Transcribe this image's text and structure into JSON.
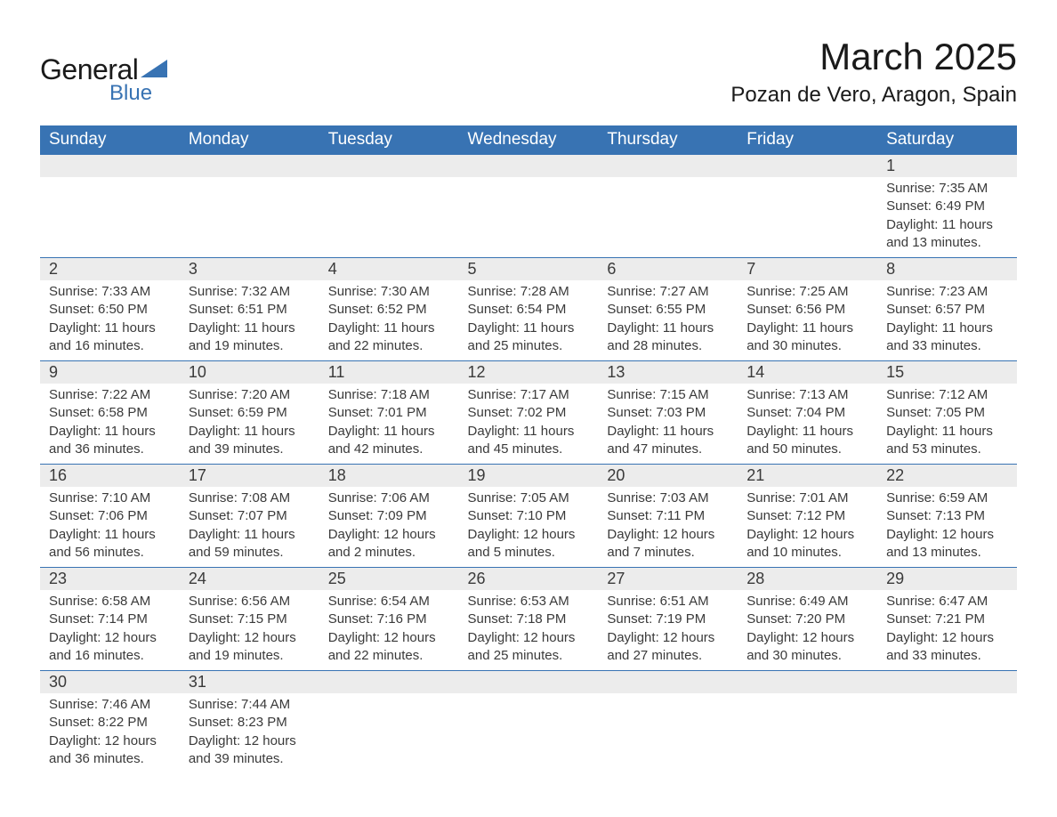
{
  "logo": {
    "general": "General",
    "blue": "Blue"
  },
  "title": "March 2025",
  "location": "Pozan de Vero, Aragon, Spain",
  "colors": {
    "header_bg": "#3873b3",
    "row_stripe": "#ececec",
    "text": "#3a3a3a",
    "border": "#3873b3"
  },
  "day_headers": [
    "Sunday",
    "Monday",
    "Tuesday",
    "Wednesday",
    "Thursday",
    "Friday",
    "Saturday"
  ],
  "weeks": [
    [
      null,
      null,
      null,
      null,
      null,
      null,
      {
        "num": "1",
        "sunrise": "7:35 AM",
        "sunset": "6:49 PM",
        "daylight": "11 hours and 13 minutes."
      }
    ],
    [
      {
        "num": "2",
        "sunrise": "7:33 AM",
        "sunset": "6:50 PM",
        "daylight": "11 hours and 16 minutes."
      },
      {
        "num": "3",
        "sunrise": "7:32 AM",
        "sunset": "6:51 PM",
        "daylight": "11 hours and 19 minutes."
      },
      {
        "num": "4",
        "sunrise": "7:30 AM",
        "sunset": "6:52 PM",
        "daylight": "11 hours and 22 minutes."
      },
      {
        "num": "5",
        "sunrise": "7:28 AM",
        "sunset": "6:54 PM",
        "daylight": "11 hours and 25 minutes."
      },
      {
        "num": "6",
        "sunrise": "7:27 AM",
        "sunset": "6:55 PM",
        "daylight": "11 hours and 28 minutes."
      },
      {
        "num": "7",
        "sunrise": "7:25 AM",
        "sunset": "6:56 PM",
        "daylight": "11 hours and 30 minutes."
      },
      {
        "num": "8",
        "sunrise": "7:23 AM",
        "sunset": "6:57 PM",
        "daylight": "11 hours and 33 minutes."
      }
    ],
    [
      {
        "num": "9",
        "sunrise": "7:22 AM",
        "sunset": "6:58 PM",
        "daylight": "11 hours and 36 minutes."
      },
      {
        "num": "10",
        "sunrise": "7:20 AM",
        "sunset": "6:59 PM",
        "daylight": "11 hours and 39 minutes."
      },
      {
        "num": "11",
        "sunrise": "7:18 AM",
        "sunset": "7:01 PM",
        "daylight": "11 hours and 42 minutes."
      },
      {
        "num": "12",
        "sunrise": "7:17 AM",
        "sunset": "7:02 PM",
        "daylight": "11 hours and 45 minutes."
      },
      {
        "num": "13",
        "sunrise": "7:15 AM",
        "sunset": "7:03 PM",
        "daylight": "11 hours and 47 minutes."
      },
      {
        "num": "14",
        "sunrise": "7:13 AM",
        "sunset": "7:04 PM",
        "daylight": "11 hours and 50 minutes."
      },
      {
        "num": "15",
        "sunrise": "7:12 AM",
        "sunset": "7:05 PM",
        "daylight": "11 hours and 53 minutes."
      }
    ],
    [
      {
        "num": "16",
        "sunrise": "7:10 AM",
        "sunset": "7:06 PM",
        "daylight": "11 hours and 56 minutes."
      },
      {
        "num": "17",
        "sunrise": "7:08 AM",
        "sunset": "7:07 PM",
        "daylight": "11 hours and 59 minutes."
      },
      {
        "num": "18",
        "sunrise": "7:06 AM",
        "sunset": "7:09 PM",
        "daylight": "12 hours and 2 minutes."
      },
      {
        "num": "19",
        "sunrise": "7:05 AM",
        "sunset": "7:10 PM",
        "daylight": "12 hours and 5 minutes."
      },
      {
        "num": "20",
        "sunrise": "7:03 AM",
        "sunset": "7:11 PM",
        "daylight": "12 hours and 7 minutes."
      },
      {
        "num": "21",
        "sunrise": "7:01 AM",
        "sunset": "7:12 PM",
        "daylight": "12 hours and 10 minutes."
      },
      {
        "num": "22",
        "sunrise": "6:59 AM",
        "sunset": "7:13 PM",
        "daylight": "12 hours and 13 minutes."
      }
    ],
    [
      {
        "num": "23",
        "sunrise": "6:58 AM",
        "sunset": "7:14 PM",
        "daylight": "12 hours and 16 minutes."
      },
      {
        "num": "24",
        "sunrise": "6:56 AM",
        "sunset": "7:15 PM",
        "daylight": "12 hours and 19 minutes."
      },
      {
        "num": "25",
        "sunrise": "6:54 AM",
        "sunset": "7:16 PM",
        "daylight": "12 hours and 22 minutes."
      },
      {
        "num": "26",
        "sunrise": "6:53 AM",
        "sunset": "7:18 PM",
        "daylight": "12 hours and 25 minutes."
      },
      {
        "num": "27",
        "sunrise": "6:51 AM",
        "sunset": "7:19 PM",
        "daylight": "12 hours and 27 minutes."
      },
      {
        "num": "28",
        "sunrise": "6:49 AM",
        "sunset": "7:20 PM",
        "daylight": "12 hours and 30 minutes."
      },
      {
        "num": "29",
        "sunrise": "6:47 AM",
        "sunset": "7:21 PM",
        "daylight": "12 hours and 33 minutes."
      }
    ],
    [
      {
        "num": "30",
        "sunrise": "7:46 AM",
        "sunset": "8:22 PM",
        "daylight": "12 hours and 36 minutes."
      },
      {
        "num": "31",
        "sunrise": "7:44 AM",
        "sunset": "8:23 PM",
        "daylight": "12 hours and 39 minutes."
      },
      null,
      null,
      null,
      null,
      null
    ]
  ],
  "labels": {
    "sunrise": "Sunrise: ",
    "sunset": "Sunset: ",
    "daylight": "Daylight: "
  }
}
